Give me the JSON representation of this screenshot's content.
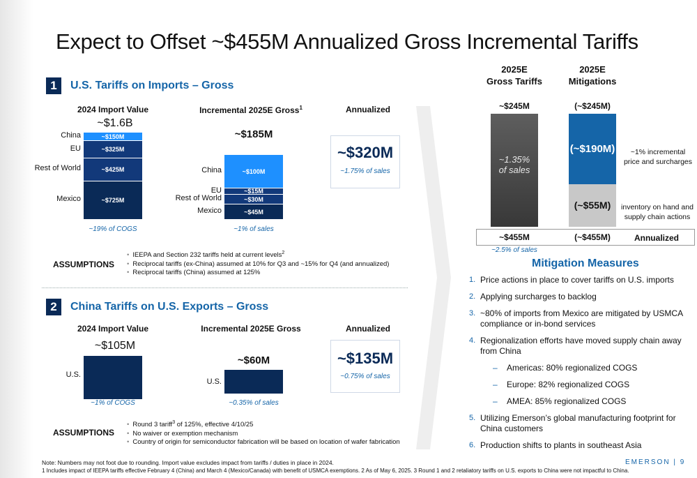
{
  "title": "Expect to Offset ~$455M Annualized Gross Incremental Tariffs",
  "section1": {
    "number": "1",
    "title": "U.S. Tariffs on Imports – Gross",
    "col1_head": "2024 Import Value",
    "col2_head": "Incremental 2025E Gross",
    "col2_sup": "1",
    "col3_head": "Annualized",
    "import_total": "~$1.6B",
    "import_bars": [
      {
        "region": "China",
        "label": "~$150M",
        "value": 150
      },
      {
        "region": "EU",
        "label": "~$325M",
        "value": 325
      },
      {
        "region": "Rest of World",
        "label": "~$425M",
        "value": 425
      },
      {
        "region": "Mexico",
        "label": "~$725M",
        "value": 725
      }
    ],
    "import_note": "~19% of COGS",
    "gross_total": "~$185M",
    "gross_bars": [
      {
        "region": "China",
        "label": "~$100M",
        "value": 100
      },
      {
        "region": "EU",
        "label": "~$15M",
        "value": 15
      },
      {
        "region": "Rest of World",
        "label": "~$30M",
        "value": 30
      },
      {
        "region": "Mexico",
        "label": "~$45M",
        "value": 45
      }
    ],
    "gross_note": "~1% of sales",
    "annualized_value": "~$320M",
    "annualized_note": "~1.75% of sales",
    "assumptions_head": "ASSUMPTIONS",
    "assumptions": [
      "IEEPA and Section 232 tariffs held at current levels",
      "Reciprocal tariffs (ex-China) assumed at 10% for Q3 and ~15% for Q4 (and annualized)",
      "Reciprocal tariffs (China) assumed at 125%"
    ],
    "assumption1_sup": "2"
  },
  "section2": {
    "number": "2",
    "title": "China Tariffs on U.S. Exports – Gross",
    "col1_head": "2024 Import Value",
    "col2_head": "Incremental 2025E Gross",
    "col3_head": "Annualized",
    "import_total": "~$105M",
    "import_region": "U.S.",
    "import_value": 105,
    "import_note": "~1% of COGS",
    "gross_total": "~$60M",
    "gross_region": "U.S.",
    "gross_value": 60,
    "gross_note": "~0.35% of sales",
    "annualized_value": "~$135M",
    "annualized_note": "~0.75% of sales",
    "assumptions_head": "ASSUMPTIONS",
    "assumption1_a": "Round 3 tariff",
    "assumption1_sup": "3",
    "assumption1_b": " of 125%, effective 4/10/25",
    "assumptions_rest": [
      "No waiver or exemption mechanism",
      "Country of origin for semiconductor fabrication will be based on location of wafer fabrication"
    ]
  },
  "right": {
    "col1_head_l1": "2025E",
    "col1_head_l2": "Gross Tariffs",
    "col2_head_l1": "2025E",
    "col2_head_l2": "Mitigations",
    "gross_top": "~$245M",
    "mitig_top": "(~$245M)",
    "gross_bar_label_l1": "~1.35%",
    "gross_bar_label_l2": "of sales",
    "mitig_seg1": "(~$190M)",
    "mitig_seg1_value": 190,
    "mitig_seg1_note_l1": "~1% incremental",
    "mitig_seg1_note_l2": "price and surcharges",
    "mitig_seg2": "(~$55M)",
    "mitig_seg2_value": 55,
    "mitig_seg2_note_l1": "inventory on hand and",
    "mitig_seg2_note_l2": "supply chain actions",
    "annual_gross": "~$455M",
    "annual_mitig": "(~$455M)",
    "annual_label": "Annualized",
    "annual_note": "~2.5% of sales"
  },
  "mitigation": {
    "title": "Mitigation Measures",
    "items": [
      "Price actions in place to cover tariffs on U.S. imports",
      "Applying surcharges to backlog",
      "~80% of imports from Mexico are mitigated by USMCA compliance or in-bond services",
      "Regionalization efforts have moved supply chain away from China",
      "Utilizing Emerson’s global manufacturing footprint for China customers",
      "Production shifts to plants in southeast Asia"
    ],
    "subitems": [
      "Americas: 80% regionalized COGS",
      "Europe: 82% regionalized COGS",
      "AMEA: 85% regionalized COGS"
    ]
  },
  "footer": {
    "note1": "Note: Numbers may not foot due to rounding. Import value excludes impact from tariffs / duties in place in 2024.",
    "note2": "1 Includes impact of IEEPA tariffs effective February 4 (China) and March 4 (Mexico/Canada) with benefit of USMCA exemptions. 2 As of May 6, 2025. 3 Round 1 and 2 retaliatory tariffs on U.S. exports to China were not impactful to China.",
    "brand": "EMERSON | 9"
  },
  "colors": {
    "navy": "#0a2a57",
    "accent_blue": "#1565a8",
    "bright_blue": "#1e90ff",
    "gray_bar": "#555555",
    "light_gray": "#c8c8c8"
  }
}
